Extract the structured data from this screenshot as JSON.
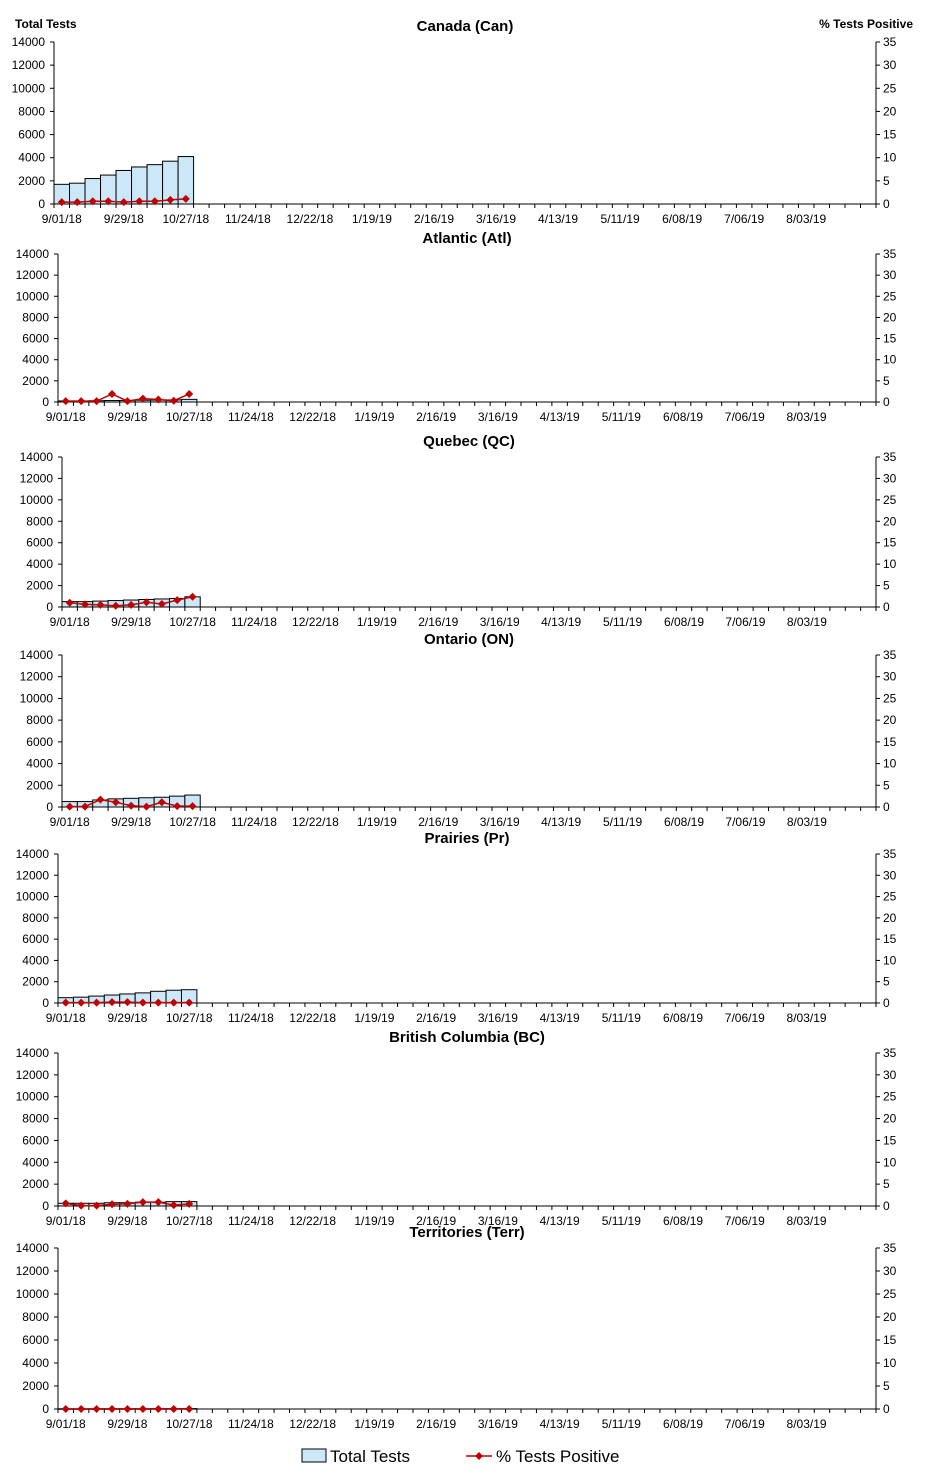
{
  "left_axis_title": "Total Tests",
  "right_axis_title": "% Tests Positive",
  "legend": {
    "bars": "Total Tests",
    "line": "% Tests Positive"
  },
  "colors": {
    "bar_fill": "#cce8f8",
    "bar_stroke": "#000000",
    "line": "#c00000",
    "axis": "#000000"
  },
  "x_tick_labels": [
    "9/01/18",
    "9/29/18",
    "10/27/18",
    "11/24/18",
    "12/22/18",
    "1/19/19",
    "2/16/19",
    "3/16/19",
    "4/13/19",
    "5/11/19",
    "6/08/19",
    "7/06/19",
    "8/03/19"
  ],
  "chart_data": [
    {
      "type": "bar",
      "title": "Canada (Can)",
      "ylim": [
        0,
        14000
      ],
      "y2lim": [
        0,
        35
      ],
      "yticks": [
        0,
        2000,
        4000,
        6000,
        8000,
        10000,
        12000,
        14000
      ],
      "y2ticks": [
        0,
        5,
        10,
        15,
        20,
        25,
        30,
        35
      ],
      "week_count": 53,
      "series": [
        {
          "name": "Total Tests",
          "values": [
            1700,
            1800,
            2200,
            2500,
            2900,
            3200,
            3400,
            3700,
            4100
          ]
        },
        {
          "name": "% Tests Positive",
          "values": [
            0.4,
            0.4,
            0.6,
            0.6,
            0.4,
            0.6,
            0.6,
            0.9,
            1.1
          ]
        }
      ]
    },
    {
      "type": "bar",
      "title": "Atlantic (Atl)",
      "ylim": [
        0,
        14000
      ],
      "y2lim": [
        0,
        35
      ],
      "yticks": [
        0,
        2000,
        4000,
        6000,
        8000,
        10000,
        12000,
        14000
      ],
      "y2ticks": [
        0,
        5,
        10,
        15,
        20,
        25,
        30,
        35
      ],
      "week_count": 53,
      "series": [
        {
          "name": "Total Tests",
          "values": [
            100,
            100,
            120,
            140,
            150,
            170,
            180,
            200,
            250
          ]
        },
        {
          "name": "% Tests Positive",
          "values": [
            0.2,
            0.2,
            0.2,
            1.9,
            0.2,
            0.8,
            0.6,
            0.3,
            1.9
          ]
        }
      ]
    },
    {
      "type": "bar",
      "title": "Quebec (QC)",
      "ylim": [
        0,
        14000
      ],
      "y2lim": [
        0,
        35
      ],
      "yticks": [
        0,
        2000,
        4000,
        6000,
        8000,
        10000,
        12000,
        14000
      ],
      "y2ticks": [
        0,
        5,
        10,
        15,
        20,
        25,
        30,
        35
      ],
      "week_count": 53,
      "series": [
        {
          "name": "Total Tests",
          "values": [
            500,
            500,
            550,
            600,
            650,
            700,
            750,
            800,
            950
          ]
        },
        {
          "name": "% Tests Positive",
          "values": [
            1.0,
            0.6,
            0.5,
            0.3,
            0.5,
            1.1,
            0.7,
            1.6,
            2.4
          ]
        }
      ]
    },
    {
      "type": "bar",
      "title": "Ontario (ON)",
      "ylim": [
        0,
        14000
      ],
      "y2lim": [
        0,
        35
      ],
      "yticks": [
        0,
        2000,
        4000,
        6000,
        8000,
        10000,
        12000,
        14000
      ],
      "y2ticks": [
        0,
        5,
        10,
        15,
        20,
        25,
        30,
        35
      ],
      "week_count": 53,
      "series": [
        {
          "name": "Total Tests",
          "values": [
            500,
            500,
            650,
            750,
            800,
            850,
            900,
            1000,
            1100
          ]
        },
        {
          "name": "% Tests Positive",
          "values": [
            0.1,
            0.1,
            1.7,
            1.1,
            0.3,
            0.1,
            1.1,
            0.2,
            0.2
          ]
        }
      ]
    },
    {
      "type": "bar",
      "title": "Prairies (Pr)",
      "ylim": [
        0,
        14000
      ],
      "y2lim": [
        0,
        35
      ],
      "yticks": [
        0,
        2000,
        4000,
        6000,
        8000,
        10000,
        12000,
        14000
      ],
      "y2ticks": [
        0,
        5,
        10,
        15,
        20,
        25,
        30,
        35
      ],
      "week_count": 53,
      "series": [
        {
          "name": "Total Tests",
          "values": [
            500,
            550,
            650,
            750,
            850,
            950,
            1100,
            1200,
            1250
          ]
        },
        {
          "name": "% Tests Positive",
          "values": [
            0.1,
            0.1,
            0.1,
            0.2,
            0.2,
            0.1,
            0.1,
            0.1,
            0.1
          ]
        }
      ]
    },
    {
      "type": "bar",
      "title": "British Columbia (BC)",
      "ylim": [
        0,
        14000
      ],
      "y2lim": [
        0,
        35
      ],
      "yticks": [
        0,
        2000,
        4000,
        6000,
        8000,
        10000,
        12000,
        14000
      ],
      "y2ticks": [
        0,
        5,
        10,
        15,
        20,
        25,
        30,
        35
      ],
      "week_count": 53,
      "series": [
        {
          "name": "Total Tests",
          "values": [
            250,
            250,
            250,
            300,
            300,
            350,
            350,
            400,
            400
          ]
        },
        {
          "name": "% Tests Positive",
          "values": [
            0.6,
            0.1,
            0.1,
            0.4,
            0.5,
            0.9,
            0.9,
            0.2,
            0.5
          ]
        }
      ]
    },
    {
      "type": "bar",
      "title": "Territories (Terr)",
      "ylim": [
        0,
        14000
      ],
      "y2lim": [
        0,
        35
      ],
      "yticks": [
        0,
        2000,
        4000,
        6000,
        8000,
        10000,
        12000,
        14000
      ],
      "y2ticks": [
        0,
        5,
        10,
        15,
        20,
        25,
        30,
        35
      ],
      "week_count": 53,
      "series": [
        {
          "name": "Total Tests",
          "values": [
            20,
            20,
            25,
            25,
            30,
            30,
            30,
            35,
            35
          ]
        },
        {
          "name": "% Tests Positive",
          "values": [
            0,
            0,
            0,
            0,
            0,
            0,
            0,
            0,
            0
          ]
        }
      ]
    }
  ]
}
